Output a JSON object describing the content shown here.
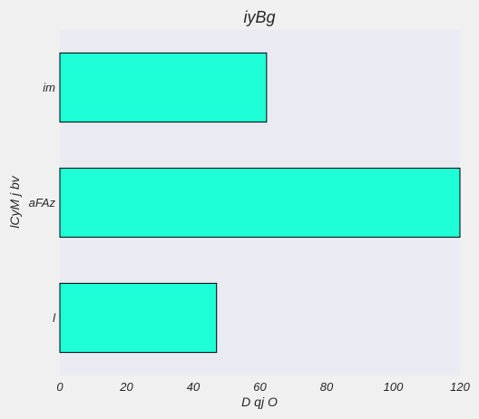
{
  "chart_data": {
    "type": "bar",
    "orientation": "horizontal",
    "title": "iyBg",
    "xlabel": "D qj O",
    "ylabel": "lCyM j bv",
    "categories": [
      "l",
      "aFAz",
      "im"
    ],
    "values": [
      47,
      120,
      62
    ],
    "xlim": [
      0,
      120
    ],
    "xticks": [
      0,
      20,
      40,
      60,
      80,
      100,
      120
    ],
    "grid": false,
    "bar_color": "#1effd7",
    "edge_color": "#000000",
    "plot_background": "#eaeaf2",
    "figure_background": "#f0f0f0"
  }
}
